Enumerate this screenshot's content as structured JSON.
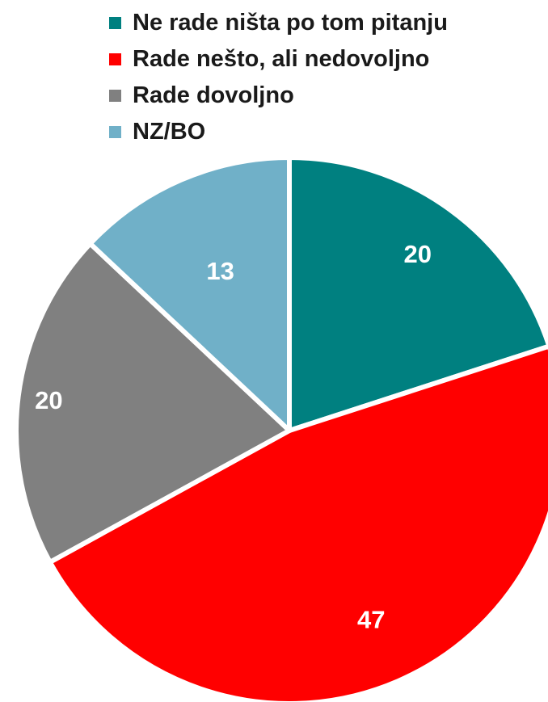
{
  "chart_data": {
    "type": "pie",
    "categories": [
      "Ne rade ništa po tom pitanju",
      "Rade nešto, ali nedovoljno",
      "Rade dovoljno",
      "NZ/BO"
    ],
    "values": [
      20,
      47,
      20,
      13
    ],
    "labels": [
      "20",
      "47",
      "20",
      "13"
    ],
    "colors": [
      "#008080",
      "#ff0000",
      "#808080",
      "#70b0c8"
    ],
    "legend_position": "top",
    "title": ""
  }
}
